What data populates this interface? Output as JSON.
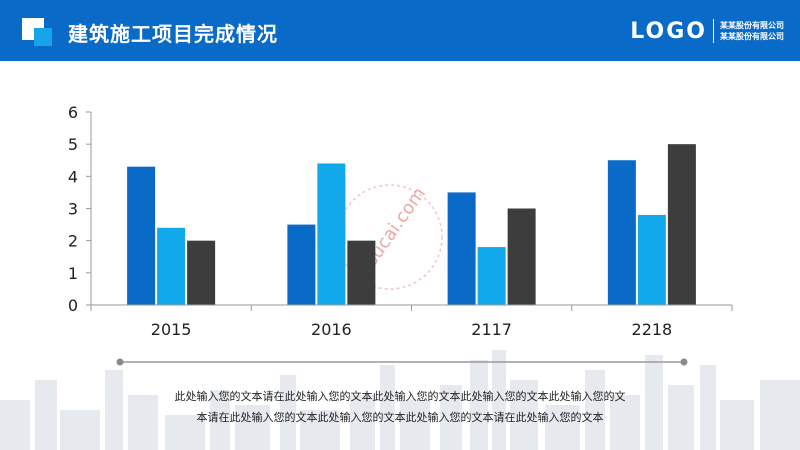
{
  "header": {
    "title": "建筑施工项目完成情况",
    "logo": "LOGO",
    "company_lines": [
      "某某股份有限公司",
      "某某股份有限公司"
    ]
  },
  "chart_data": {
    "type": "bar",
    "categories": [
      "2015",
      "2016",
      "2117",
      "2218"
    ],
    "series": [
      {
        "values": [
          4.3,
          2.5,
          3.5,
          4.5
        ]
      },
      {
        "values": [
          2.4,
          4.4,
          1.8,
          2.8
        ]
      },
      {
        "values": [
          2.0,
          2.0,
          3.0,
          5.0
        ]
      }
    ],
    "ylim": [
      0,
      6
    ],
    "yticks": [
      0,
      1,
      2,
      3,
      4,
      5,
      6
    ],
    "grid": false,
    "colors": [
      "#0a6ac7",
      "#12a9ec",
      "#3d3d3d"
    ]
  },
  "watermark": "58sucai.com",
  "footer": {
    "lines": [
      "此处输入您的文本请在此处输入您的文本此处输入您的文本此处输入您的文本此处输入您的文",
      "本请在此处输入您的文本此处输入您的文本此处输入您的文本请在此处输入您的文本"
    ]
  },
  "colors": {
    "header_bg": "#0a6ac7",
    "accent": "#17a4e8",
    "axis": "#9a9a9a"
  }
}
